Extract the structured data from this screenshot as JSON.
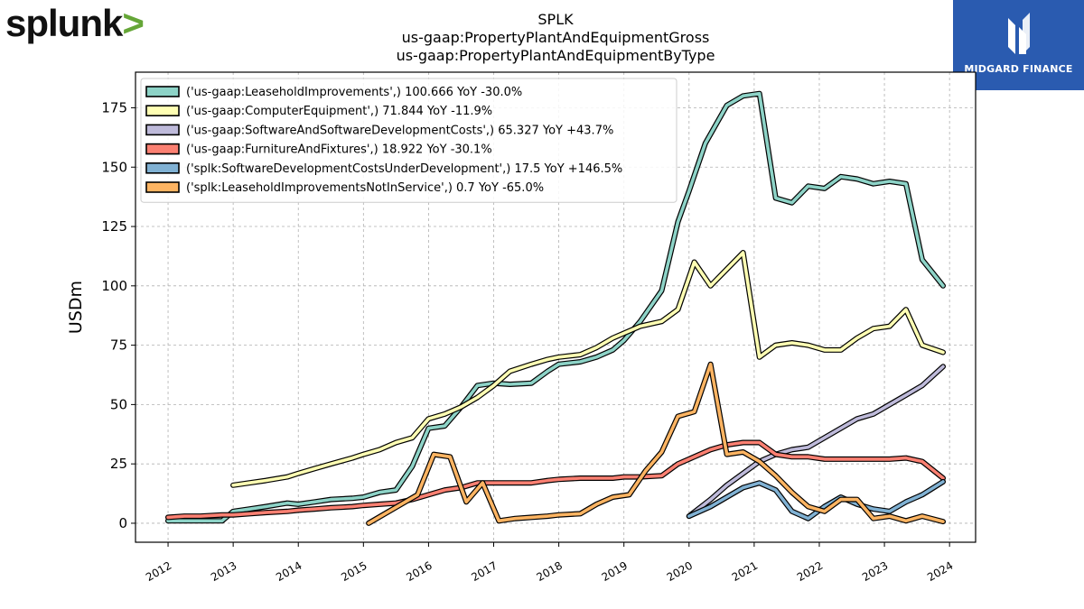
{
  "branding": {
    "left_logo_text": "splunk",
    "left_logo_chevron": ">",
    "right_logo_text": "MIDGARD FINANCE"
  },
  "chart_data": {
    "type": "line",
    "title_lines": [
      "SPLK",
      "us-gaap:PropertyPlantAndEquipmentGross",
      "us-gaap:PropertyPlantAndEquipmentByType"
    ],
    "xlabel": "",
    "ylabel": "USDm",
    "xlim": [
      2011.5,
      2024.4
    ],
    "ylim": [
      -8,
      190
    ],
    "x_ticks": [
      2012,
      2013,
      2014,
      2015,
      2016,
      2017,
      2018,
      2019,
      2020,
      2021,
      2022,
      2023,
      2024
    ],
    "y_ticks": [
      0,
      25,
      50,
      75,
      100,
      125,
      150,
      175
    ],
    "grid": true,
    "legend_position": "top-left",
    "series": [
      {
        "name": "('us-gaap:LeaseholdImprovements',) 100.666 YoY -30.0%",
        "color": "#8dd3c7",
        "points": [
          [
            2012.0,
            1
          ],
          [
            2012.25,
            1
          ],
          [
            2012.5,
            1
          ],
          [
            2012.83,
            1
          ],
          [
            2013.0,
            5
          ],
          [
            2013.25,
            6
          ],
          [
            2013.5,
            7
          ],
          [
            2013.83,
            8.5
          ],
          [
            2014.0,
            8
          ],
          [
            2014.25,
            9
          ],
          [
            2014.5,
            10
          ],
          [
            2014.83,
            10.5
          ],
          [
            2015.0,
            11
          ],
          [
            2015.25,
            13
          ],
          [
            2015.5,
            14
          ],
          [
            2015.75,
            24
          ],
          [
            2016.0,
            40
          ],
          [
            2016.25,
            41
          ],
          [
            2016.5,
            49
          ],
          [
            2016.75,
            58
          ],
          [
            2017.0,
            59
          ],
          [
            2017.25,
            58.5
          ],
          [
            2017.58,
            59
          ],
          [
            2017.83,
            64
          ],
          [
            2018.0,
            67
          ],
          [
            2018.33,
            68
          ],
          [
            2018.58,
            70
          ],
          [
            2018.83,
            73
          ],
          [
            2019.0,
            77
          ],
          [
            2019.25,
            85
          ],
          [
            2019.58,
            98
          ],
          [
            2019.83,
            127
          ],
          [
            2020.0,
            140
          ],
          [
            2020.25,
            160
          ],
          [
            2020.58,
            176
          ],
          [
            2020.83,
            180
          ],
          [
            2021.08,
            181
          ],
          [
            2021.33,
            137
          ],
          [
            2021.58,
            135
          ],
          [
            2021.83,
            142
          ],
          [
            2022.08,
            141
          ],
          [
            2022.33,
            146
          ],
          [
            2022.58,
            145
          ],
          [
            2022.83,
            143
          ],
          [
            2023.08,
            144
          ],
          [
            2023.33,
            143
          ],
          [
            2023.58,
            111
          ],
          [
            2023.9,
            100
          ]
        ]
      },
      {
        "name": "('us-gaap:ComputerEquipment',) 71.844 YoY -11.9%",
        "color": "#ffffb3",
        "points": [
          [
            2013.0,
            16
          ],
          [
            2013.25,
            17
          ],
          [
            2013.5,
            18
          ],
          [
            2013.83,
            19.5
          ],
          [
            2014.0,
            21
          ],
          [
            2014.25,
            23
          ],
          [
            2014.5,
            25
          ],
          [
            2014.83,
            27.5
          ],
          [
            2015.0,
            29
          ],
          [
            2015.25,
            31
          ],
          [
            2015.5,
            34
          ],
          [
            2015.75,
            36
          ],
          [
            2016.0,
            44
          ],
          [
            2016.25,
            46
          ],
          [
            2016.5,
            49
          ],
          [
            2016.75,
            53
          ],
          [
            2017.0,
            58
          ],
          [
            2017.25,
            64
          ],
          [
            2017.58,
            67
          ],
          [
            2017.83,
            69
          ],
          [
            2018.0,
            70
          ],
          [
            2018.33,
            71
          ],
          [
            2018.58,
            74
          ],
          [
            2018.83,
            78
          ],
          [
            2019.0,
            80
          ],
          [
            2019.25,
            83
          ],
          [
            2019.58,
            85
          ],
          [
            2019.83,
            90
          ],
          [
            2020.08,
            110
          ],
          [
            2020.33,
            100
          ],
          [
            2020.58,
            107
          ],
          [
            2020.83,
            114
          ],
          [
            2021.08,
            70
          ],
          [
            2021.33,
            75
          ],
          [
            2021.58,
            76
          ],
          [
            2021.83,
            75
          ],
          [
            2022.08,
            73
          ],
          [
            2022.33,
            73
          ],
          [
            2022.58,
            78
          ],
          [
            2022.83,
            82
          ],
          [
            2023.08,
            83
          ],
          [
            2023.33,
            90
          ],
          [
            2023.58,
            75
          ],
          [
            2023.9,
            72
          ]
        ]
      },
      {
        "name": "('us-gaap:SoftwareAndSoftwareDevelopmentCosts',) 65.327 YoY +43.7%",
        "color": "#bebada",
        "points": [
          [
            2020.0,
            3
          ],
          [
            2020.33,
            10
          ],
          [
            2020.58,
            16
          ],
          [
            2020.83,
            21
          ],
          [
            2021.08,
            26
          ],
          [
            2021.33,
            29
          ],
          [
            2021.58,
            31
          ],
          [
            2021.83,
            32
          ],
          [
            2022.08,
            36
          ],
          [
            2022.33,
            40
          ],
          [
            2022.58,
            44
          ],
          [
            2022.83,
            46
          ],
          [
            2023.08,
            50
          ],
          [
            2023.33,
            54
          ],
          [
            2023.58,
            58
          ],
          [
            2023.9,
            66
          ]
        ]
      },
      {
        "name": "('us-gaap:FurnitureAndFixtures',) 18.922 YoY -30.1%",
        "color": "#fb8072",
        "points": [
          [
            2012.0,
            2.5
          ],
          [
            2012.25,
            3
          ],
          [
            2012.5,
            3
          ],
          [
            2012.83,
            3.5
          ],
          [
            2013.0,
            3.5
          ],
          [
            2013.25,
            4
          ],
          [
            2013.5,
            4.5
          ],
          [
            2013.83,
            5
          ],
          [
            2014.0,
            5.5
          ],
          [
            2014.25,
            6
          ],
          [
            2014.5,
            6.5
          ],
          [
            2014.83,
            7
          ],
          [
            2015.0,
            7.5
          ],
          [
            2015.25,
            8
          ],
          [
            2015.5,
            8.5
          ],
          [
            2015.75,
            10
          ],
          [
            2016.0,
            12
          ],
          [
            2016.25,
            14
          ],
          [
            2016.5,
            15
          ],
          [
            2016.75,
            17
          ],
          [
            2017.0,
            17
          ],
          [
            2017.25,
            17
          ],
          [
            2017.58,
            17
          ],
          [
            2017.83,
            18
          ],
          [
            2018.0,
            18.5
          ],
          [
            2018.33,
            19
          ],
          [
            2018.58,
            19
          ],
          [
            2018.83,
            19
          ],
          [
            2019.0,
            19.5
          ],
          [
            2019.25,
            19.5
          ],
          [
            2019.58,
            20
          ],
          [
            2019.83,
            25
          ],
          [
            2020.08,
            28
          ],
          [
            2020.33,
            31
          ],
          [
            2020.58,
            33
          ],
          [
            2020.83,
            34
          ],
          [
            2021.08,
            34
          ],
          [
            2021.33,
            29
          ],
          [
            2021.58,
            28
          ],
          [
            2021.83,
            28
          ],
          [
            2022.08,
            27
          ],
          [
            2022.33,
            27
          ],
          [
            2022.58,
            27
          ],
          [
            2022.83,
            27
          ],
          [
            2023.08,
            27
          ],
          [
            2023.33,
            27.5
          ],
          [
            2023.58,
            26
          ],
          [
            2023.9,
            19
          ]
        ]
      },
      {
        "name": "('splk:SoftwareDevelopmentCostsUnderDevelopment',) 17.5 YoY +146.5%",
        "color": "#80b1d3",
        "points": [
          [
            2020.0,
            3
          ],
          [
            2020.33,
            7
          ],
          [
            2020.58,
            11
          ],
          [
            2020.83,
            15
          ],
          [
            2021.08,
            17
          ],
          [
            2021.33,
            14
          ],
          [
            2021.58,
            5
          ],
          [
            2021.83,
            2
          ],
          [
            2022.08,
            7
          ],
          [
            2022.33,
            11
          ],
          [
            2022.58,
            8
          ],
          [
            2022.83,
            6
          ],
          [
            2023.08,
            5
          ],
          [
            2023.33,
            9
          ],
          [
            2023.58,
            12
          ],
          [
            2023.9,
            17.5
          ]
        ]
      },
      {
        "name": "('splk:LeaseholdImprovementsNotInService',) 0.7 YoY -65.0%",
        "color": "#fdb462",
        "points": [
          [
            2015.08,
            0
          ],
          [
            2015.33,
            4
          ],
          [
            2015.58,
            8
          ],
          [
            2015.83,
            12
          ],
          [
            2016.08,
            29
          ],
          [
            2016.33,
            28
          ],
          [
            2016.58,
            9
          ],
          [
            2016.83,
            17
          ],
          [
            2017.08,
            1
          ],
          [
            2017.33,
            2
          ],
          [
            2017.58,
            2.5
          ],
          [
            2017.83,
            3
          ],
          [
            2018.0,
            3.5
          ],
          [
            2018.33,
            4
          ],
          [
            2018.58,
            8
          ],
          [
            2018.83,
            11
          ],
          [
            2019.08,
            12
          ],
          [
            2019.33,
            22
          ],
          [
            2019.58,
            30
          ],
          [
            2019.83,
            45
          ],
          [
            2020.08,
            47
          ],
          [
            2020.33,
            67
          ],
          [
            2020.58,
            29
          ],
          [
            2020.83,
            30
          ],
          [
            2021.08,
            26
          ],
          [
            2021.33,
            20
          ],
          [
            2021.58,
            13
          ],
          [
            2021.83,
            7
          ],
          [
            2022.08,
            5
          ],
          [
            2022.33,
            10
          ],
          [
            2022.58,
            10
          ],
          [
            2022.83,
            2
          ],
          [
            2023.08,
            3
          ],
          [
            2023.33,
            1
          ],
          [
            2023.58,
            3
          ],
          [
            2023.9,
            0.7
          ]
        ]
      }
    ]
  }
}
